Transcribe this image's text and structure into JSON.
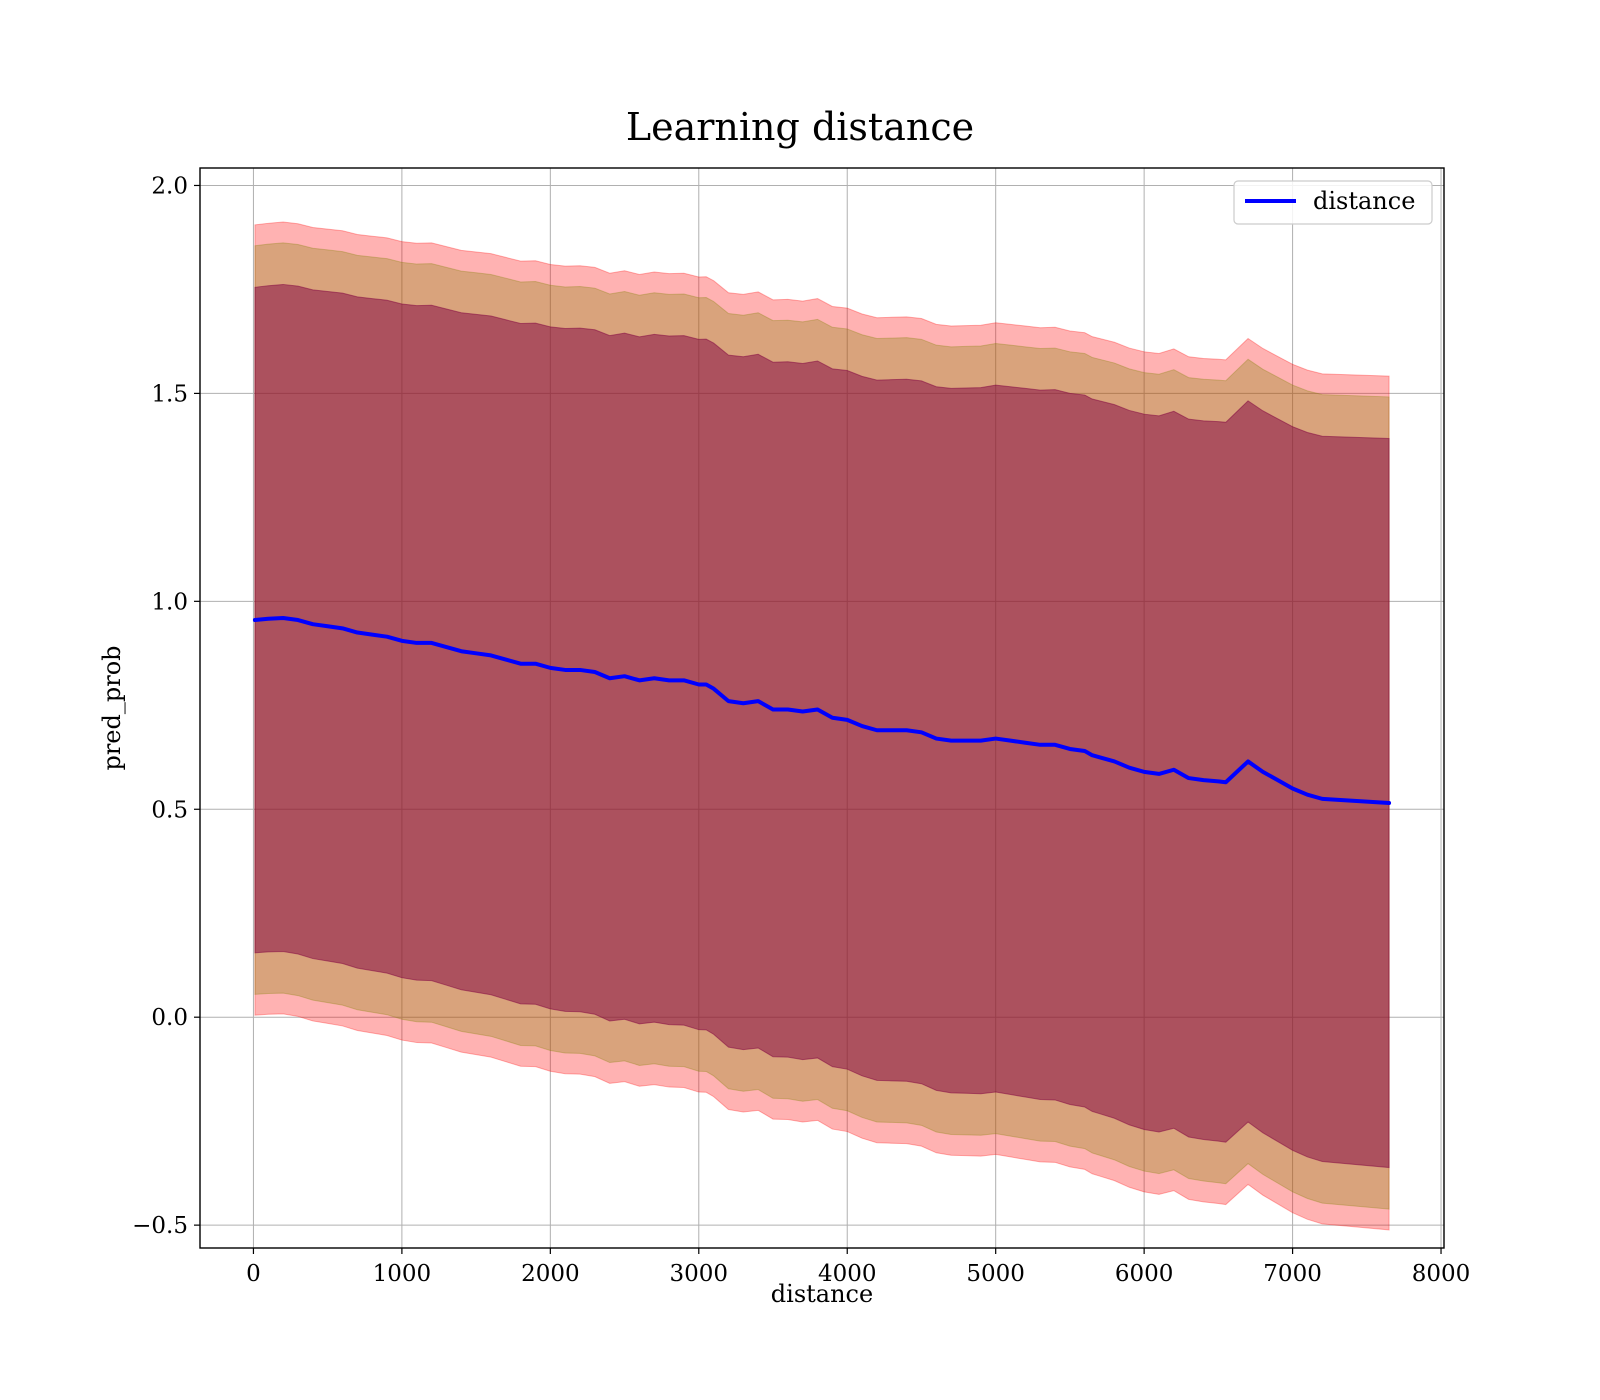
{
  "chart_data": {
    "type": "line",
    "title": "Learning distance",
    "xlabel": "distance",
    "ylabel": "pred_prob",
    "xlim": [
      -360,
      8020
    ],
    "ylim": [
      -0.555,
      2.042
    ],
    "x_ticks": [
      0,
      1000,
      2000,
      3000,
      4000,
      5000,
      6000,
      7000,
      8000
    ],
    "x_tick_labels": [
      "0",
      "1000",
      "2000",
      "3000",
      "4000",
      "5000",
      "6000",
      "7000",
      "8000"
    ],
    "y_ticks": [
      -0.5,
      0.0,
      0.5,
      1.0,
      1.5,
      2.0
    ],
    "y_tick_labels": [
      "−0.5",
      "0.0",
      "0.5",
      "1.0",
      "1.5",
      "2.0"
    ],
    "grid": true,
    "legend_position": "top-right",
    "colors": {
      "line": "#0000ff",
      "band_outer": "#ff0000",
      "band_middle": "#808000",
      "band_inner": "#800040",
      "grid": "#b0b0b0"
    },
    "series": [
      {
        "name": "distance",
        "x": [
          10,
          100,
          200,
          300,
          400,
          500,
          600,
          700,
          800,
          900,
          1000,
          1100,
          1200,
          1300,
          1400,
          1500,
          1600,
          1700,
          1800,
          1900,
          2000,
          2100,
          2200,
          2300,
          2400,
          2500,
          2600,
          2700,
          2800,
          2900,
          3000,
          3050,
          3100,
          3200,
          3300,
          3400,
          3500,
          3600,
          3700,
          3800,
          3900,
          4000,
          4100,
          4200,
          4300,
          4400,
          4500,
          4600,
          4700,
          4800,
          4900,
          5000,
          5100,
          5200,
          5300,
          5400,
          5500,
          5600,
          5650,
          5700,
          5800,
          5900,
          6000,
          6100,
          6200,
          6300,
          6400,
          6500,
          6550,
          6700,
          6800,
          6900,
          7000,
          7100,
          7200,
          7650
        ],
        "y": [
          0.955,
          0.958,
          0.96,
          0.955,
          0.945,
          0.94,
          0.935,
          0.925,
          0.92,
          0.915,
          0.905,
          0.9,
          0.9,
          0.89,
          0.88,
          0.875,
          0.87,
          0.86,
          0.85,
          0.85,
          0.84,
          0.835,
          0.835,
          0.83,
          0.815,
          0.82,
          0.81,
          0.815,
          0.81,
          0.81,
          0.8,
          0.8,
          0.79,
          0.76,
          0.755,
          0.76,
          0.74,
          0.74,
          0.735,
          0.74,
          0.72,
          0.715,
          0.7,
          0.69,
          0.69,
          0.69,
          0.685,
          0.67,
          0.665,
          0.665,
          0.665,
          0.67,
          0.665,
          0.66,
          0.655,
          0.655,
          0.645,
          0.64,
          0.63,
          0.625,
          0.615,
          0.6,
          0.59,
          0.585,
          0.595,
          0.575,
          0.57,
          0.567,
          0.565,
          0.615,
          0.59,
          0.57,
          0.55,
          0.535,
          0.525,
          0.515
        ]
      }
    ],
    "band_half_widths": [
      0.8,
      0.9,
      0.95
    ],
    "band_widening_per_unit_x": 1e-05
  },
  "legend": {
    "label": "distance"
  }
}
